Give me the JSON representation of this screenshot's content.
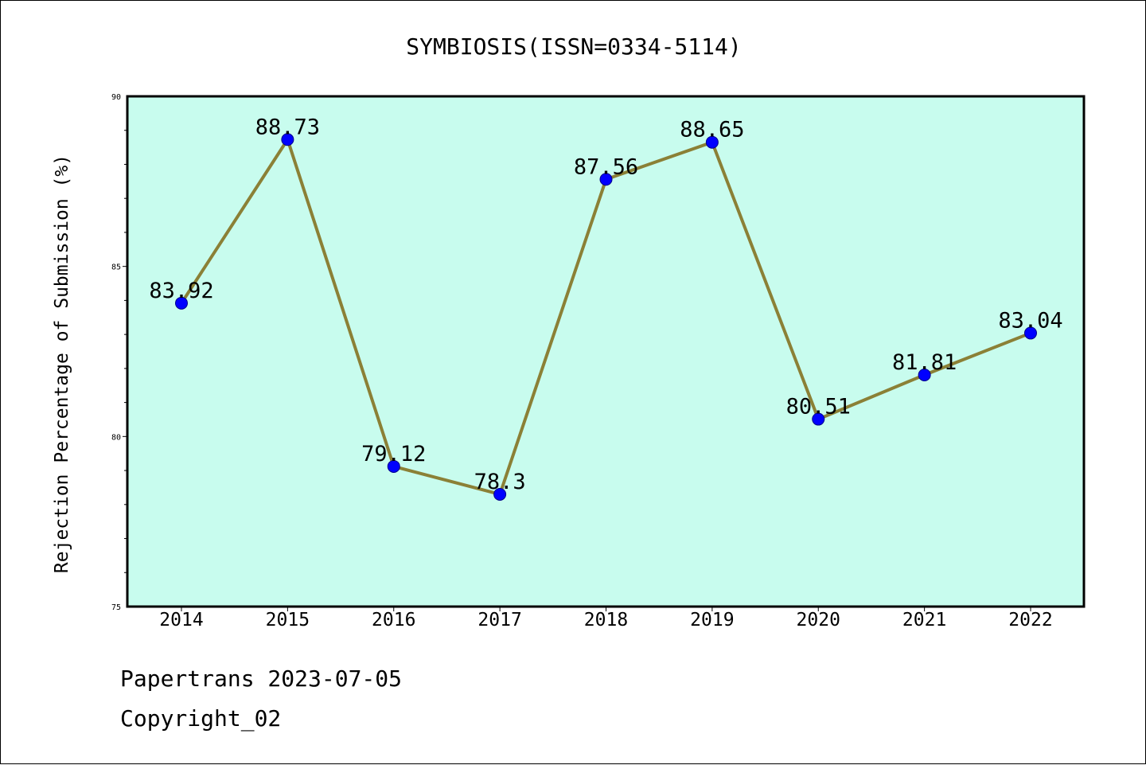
{
  "chart_data": {
    "type": "line",
    "title": "SYMBIOSIS(ISSN=0334-5114)",
    "xlabel": "",
    "ylabel": "Rejection Percentage of Submission (%)",
    "categories": [
      "2014",
      "2015",
      "2016",
      "2017",
      "2018",
      "2019",
      "2020",
      "2021",
      "2022"
    ],
    "values": [
      83.92,
      88.73,
      79.12,
      78.3,
      87.56,
      88.65,
      80.51,
      81.81,
      83.04
    ],
    "data_labels": [
      "83.92",
      "88.73",
      "79.12",
      "78.3",
      "87.56",
      "88.65",
      "80.51",
      "81.81",
      "83.04"
    ],
    "ylim": [
      75,
      90
    ],
    "y_ticks": [
      "75",
      "80",
      "85",
      "90"
    ],
    "grid": false,
    "colors": {
      "plot_background": "#c8fcee",
      "line": "#8b8036",
      "marker": "#0000ff"
    }
  },
  "footer": {
    "line1": "Papertrans 2023-07-05",
    "line2": "Copyright_02"
  }
}
